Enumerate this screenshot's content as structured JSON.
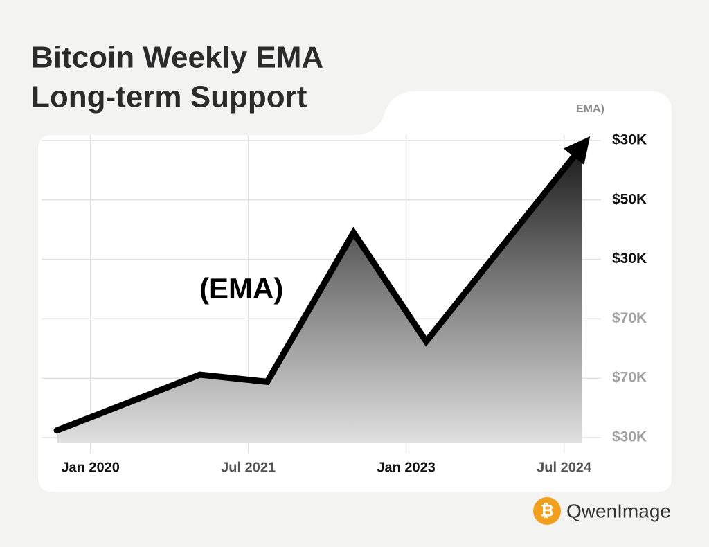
{
  "chart_data": {
    "type": "line",
    "title": [
      "Bitcoin Weekly EMA",
      "Long-term Support"
    ],
    "legend_label": "EMA)",
    "annotation": "(EMA)",
    "x": [
      2019.68,
      2021.04,
      2021.68,
      2022.5,
      2023.19,
      2024.67
    ],
    "series": [
      {
        "name": "EMA",
        "color": "#000000",
        "values": [
          0.12,
          1.06,
          0.94,
          3.45,
          1.62,
          4.9
        ]
      }
    ],
    "xlim": [
      2019.68,
      2024.7
    ],
    "xticks": [
      {
        "value": 2020.0,
        "label": "Jan 2020"
      },
      {
        "value": 2021.5,
        "label": "Jul 2021"
      },
      {
        "value": 2023.0,
        "label": "Jan 2023"
      },
      {
        "value": 2024.5,
        "label": "Jul 2024"
      }
    ],
    "ylim": [
      0,
      5
    ],
    "yticks": [
      {
        "value": 0,
        "label": "$30K"
      },
      {
        "value": 1,
        "label": "$70K"
      },
      {
        "value": 2,
        "label": "$70K"
      },
      {
        "value": 3,
        "label": "$30K"
      },
      {
        "value": 4,
        "label": "$50K"
      },
      {
        "value": 5,
        "label": "$30K"
      }
    ],
    "grid": true
  },
  "watermark": {
    "symbol": "₿",
    "text": "QwenImage"
  }
}
